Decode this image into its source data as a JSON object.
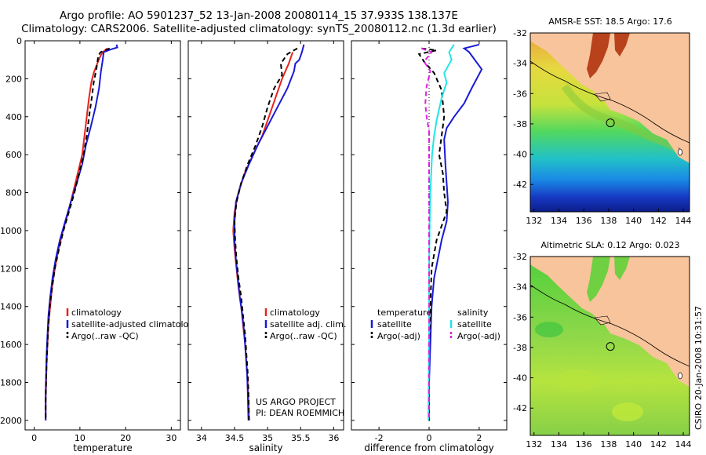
{
  "title": {
    "line1": "Argo profile: AO 5901237_52 13-Jan-2008 20080114_15 37.933S 138.137E",
    "line2": "Climatology: CARS2006. Satellite-adjusted climatology: synTS_20080112.nc (1.3d earlier)"
  },
  "credit": {
    "line1": "US ARGO PROJECT",
    "line2": "PI: DEAN ROEMMICH"
  },
  "side_stamp": "CSIRO 20-Jan-2008 10:31:57",
  "colors": {
    "red": "#e8231c",
    "blue": "#1a1ad6",
    "black": "#000000",
    "cyan": "#22e5e5",
    "magenta": "#e020e0",
    "land": "#f8c49b"
  },
  "chart_data": [
    {
      "type": "line",
      "id": "temperature",
      "xlabel": "temperature",
      "ylabel": "",
      "xlim": [
        -2,
        32
      ],
      "ylim": [
        2050,
        0
      ],
      "xticks": [
        0,
        10,
        20,
        30
      ],
      "yticks": [
        0,
        200,
        400,
        600,
        800,
        1000,
        1200,
        1400,
        1600,
        1800,
        2000
      ],
      "legend": [
        "climatology",
        "satellite-adjusted climatology",
        "Argo(..raw -QC)"
      ],
      "series": [
        {
          "name": "climatology",
          "color": "red",
          "dash": "",
          "points": [
            [
              16,
              40
            ],
            [
              15,
              60
            ],
            [
              14.5,
              80
            ],
            [
              13.8,
              120
            ],
            [
              13,
              170
            ],
            [
              12.5,
              220
            ],
            [
              12,
              300
            ],
            [
              11.5,
              400
            ],
            [
              11,
              500
            ],
            [
              10.5,
              600
            ],
            [
              9.5,
              700
            ],
            [
              8.5,
              800
            ],
            [
              7.5,
              900
            ],
            [
              6.3,
              1000
            ],
            [
              5.3,
              1100
            ],
            [
              4.5,
              1200
            ],
            [
              3.9,
              1300
            ],
            [
              3.5,
              1400
            ],
            [
              3.1,
              1500
            ],
            [
              2.9,
              1600
            ],
            [
              2.7,
              1700
            ],
            [
              2.6,
              1800
            ],
            [
              2.5,
              1900
            ],
            [
              2.5,
              2000
            ]
          ]
        },
        {
          "name": "satellite-adjusted climatology",
          "color": "blue",
          "dash": "",
          "points": [
            [
              18,
              20
            ],
            [
              18.2,
              35
            ],
            [
              16.8,
              45
            ],
            [
              15.2,
              60
            ],
            [
              15,
              100
            ],
            [
              14.6,
              160
            ],
            [
              14.2,
              250
            ],
            [
              13.4,
              350
            ],
            [
              12.4,
              450
            ],
            [
              11.3,
              550
            ],
            [
              10.5,
              650
            ],
            [
              9.3,
              750
            ],
            [
              8,
              850
            ],
            [
              6.8,
              950
            ],
            [
              5.6,
              1050
            ],
            [
              4.7,
              1150
            ],
            [
              4,
              1250
            ],
            [
              3.5,
              1350
            ],
            [
              3.1,
              1450
            ],
            [
              2.9,
              1550
            ],
            [
              2.7,
              1650
            ],
            [
              2.6,
              1750
            ],
            [
              2.5,
              1850
            ],
            [
              2.5,
              2000
            ]
          ]
        },
        {
          "name": "Argo(..raw -QC)",
          "color": "black",
          "dash": "6,4",
          "points": [
            [
              16.5,
              40
            ],
            [
              14.5,
              60
            ],
            [
              14,
              80
            ],
            [
              13.8,
              120
            ],
            [
              13.5,
              160
            ],
            [
              13,
              220
            ],
            [
              12.6,
              300
            ],
            [
              12,
              400
            ],
            [
              11.5,
              500
            ],
            [
              10.8,
              600
            ],
            [
              9.8,
              700
            ],
            [
              8.8,
              800
            ],
            [
              7.6,
              900
            ],
            [
              6.4,
              1000
            ],
            [
              5.4,
              1100
            ],
            [
              4.5,
              1200
            ],
            [
              3.9,
              1300
            ],
            [
              3.4,
              1400
            ],
            [
              3.1,
              1500
            ],
            [
              2.9,
              1600
            ],
            [
              2.7,
              1700
            ],
            [
              2.6,
              1800
            ],
            [
              2.5,
              1900
            ],
            [
              2.5,
              2000
            ]
          ]
        }
      ]
    },
    {
      "type": "line",
      "id": "salinity",
      "xlabel": "salinity",
      "ylabel": "",
      "xlim": [
        33.8,
        36.15
      ],
      "ylim": [
        2050,
        0
      ],
      "xticks": [
        34,
        34.5,
        35,
        35.5,
        36
      ],
      "yticks": [
        0,
        200,
        400,
        600,
        800,
        1000,
        1200,
        1400,
        1600,
        1800,
        2000
      ],
      "legend": [
        "climatology",
        "satellite adj. clim.",
        "Argo(..raw -QC)"
      ],
      "series": [
        {
          "name": "climatology",
          "color": "red",
          "dash": "",
          "points": [
            [
              35.38,
              60
            ],
            [
              35.32,
              120
            ],
            [
              35.22,
              200
            ],
            [
              35.12,
              300
            ],
            [
              35.02,
              400
            ],
            [
              34.92,
              500
            ],
            [
              34.78,
              600
            ],
            [
              34.65,
              700
            ],
            [
              34.56,
              800
            ],
            [
              34.5,
              900
            ],
            [
              34.48,
              1000
            ],
            [
              34.5,
              1100
            ],
            [
              34.53,
              1200
            ],
            [
              34.56,
              1300
            ],
            [
              34.6,
              1400
            ],
            [
              34.63,
              1500
            ],
            [
              34.66,
              1600
            ],
            [
              34.68,
              1700
            ],
            [
              34.7,
              1800
            ],
            [
              34.71,
              1900
            ],
            [
              34.72,
              2000
            ]
          ]
        },
        {
          "name": "satellite adj. clim.",
          "color": "blue",
          "dash": "",
          "points": [
            [
              35.55,
              20
            ],
            [
              35.52,
              60
            ],
            [
              35.48,
              100
            ],
            [
              35.42,
              120
            ],
            [
              35.4,
              160
            ],
            [
              35.3,
              250
            ],
            [
              35.15,
              350
            ],
            [
              35,
              450
            ],
            [
              34.85,
              550
            ],
            [
              34.72,
              650
            ],
            [
              34.6,
              750
            ],
            [
              34.52,
              850
            ],
            [
              34.5,
              950
            ],
            [
              34.5,
              1050
            ],
            [
              34.52,
              1150
            ],
            [
              34.55,
              1250
            ],
            [
              34.58,
              1350
            ],
            [
              34.62,
              1450
            ],
            [
              34.65,
              1550
            ],
            [
              34.67,
              1650
            ],
            [
              34.69,
              1750
            ],
            [
              34.7,
              1850
            ],
            [
              34.71,
              2000
            ]
          ]
        },
        {
          "name": "Argo(..raw -QC)",
          "color": "black",
          "dash": "6,4",
          "points": [
            [
              35.45,
              40
            ],
            [
              35.3,
              70
            ],
            [
              35.2,
              120
            ],
            [
              35.22,
              180
            ],
            [
              35.1,
              250
            ],
            [
              35,
              350
            ],
            [
              34.92,
              450
            ],
            [
              34.82,
              550
            ],
            [
              34.7,
              650
            ],
            [
              34.6,
              750
            ],
            [
              34.53,
              850
            ],
            [
              34.5,
              950
            ],
            [
              34.51,
              1050
            ],
            [
              34.53,
              1150
            ],
            [
              34.56,
              1250
            ],
            [
              34.6,
              1350
            ],
            [
              34.63,
              1450
            ],
            [
              34.66,
              1550
            ],
            [
              34.68,
              1650
            ],
            [
              34.7,
              1750
            ],
            [
              34.71,
              1850
            ],
            [
              34.72,
              2000
            ]
          ]
        }
      ]
    },
    {
      "type": "line",
      "id": "difference",
      "xlabel": "difference from climatology",
      "ylabel": "",
      "xlim": [
        -3.1,
        3.1
      ],
      "ylim": [
        2050,
        0
      ],
      "xticks": [
        -2,
        0,
        2
      ],
      "yticks": [
        0,
        200,
        400,
        600,
        800,
        1000,
        1200,
        1400,
        1600,
        1800,
        2000
      ],
      "legend_headers": [
        "temperature",
        "salinity"
      ],
      "legend": [
        "satellite",
        "Argo(-adj)",
        "satellite",
        "Argo(-adj)"
      ],
      "series": [
        {
          "name": "temperature satellite",
          "color": "blue",
          "dash": "",
          "points": [
            [
              2,
              20
            ],
            [
              1.4,
              40
            ],
            [
              1.6,
              60
            ],
            [
              2.1,
              150
            ],
            [
              1.7,
              250
            ],
            [
              1.4,
              330
            ],
            [
              1,
              400
            ],
            [
              0.7,
              460
            ],
            [
              0.6,
              520
            ],
            [
              0.65,
              650
            ],
            [
              0.7,
              750
            ],
            [
              0.75,
              850
            ],
            [
              0.7,
              950
            ],
            [
              0.5,
              1050
            ],
            [
              0.35,
              1150
            ],
            [
              0.2,
              1250
            ],
            [
              0.1,
              1400
            ],
            [
              0.05,
              1600
            ],
            [
              0,
              1800
            ],
            [
              0,
              2000
            ]
          ]
        },
        {
          "name": "temperature Argo(-adj)",
          "color": "black",
          "dash": "6,4",
          "points": [
            [
              -0.3,
              40
            ],
            [
              0.3,
              50
            ],
            [
              -0.4,
              70
            ],
            [
              -0.2,
              110
            ],
            [
              0.2,
              170
            ],
            [
              0.5,
              260
            ],
            [
              0.6,
              400
            ],
            [
              0.5,
              500
            ],
            [
              0.4,
              600
            ],
            [
              0.55,
              700
            ],
            [
              0.6,
              800
            ],
            [
              0.7,
              900
            ],
            [
              0.3,
              1050
            ],
            [
              0.1,
              1200
            ],
            [
              0.05,
              1400
            ],
            [
              0,
              1600
            ],
            [
              0,
              2000
            ]
          ]
        },
        {
          "name": "salinity satellite",
          "color": "cyan",
          "dash": "",
          "points": [
            [
              1,
              20
            ],
            [
              0.8,
              60
            ],
            [
              0.9,
              100
            ],
            [
              0.6,
              170
            ],
            [
              0.7,
              220
            ],
            [
              0.5,
              300
            ],
            [
              0.3,
              420
            ],
            [
              0.2,
              500
            ],
            [
              0.12,
              600
            ],
            [
              0.05,
              800
            ],
            [
              0.02,
              1000
            ],
            [
              0,
              1200
            ],
            [
              0,
              1500
            ],
            [
              -0.02,
              1800
            ],
            [
              -0.03,
              2000
            ]
          ]
        },
        {
          "name": "salinity Argo(-adj)",
          "color": "magenta",
          "dash": "6,4",
          "points": [
            [
              -0.3,
              40
            ],
            [
              0.1,
              60
            ],
            [
              -0.2,
              110
            ],
            [
              0.05,
              160
            ],
            [
              -0.1,
              240
            ],
            [
              -0.15,
              330
            ],
            [
              -0.1,
              400
            ],
            [
              0,
              480
            ],
            [
              0,
              600
            ],
            [
              0,
              800
            ],
            [
              0,
              1000
            ],
            [
              0,
              1200
            ],
            [
              0,
              1500
            ],
            [
              0,
              1800
            ],
            [
              0,
              2000
            ]
          ]
        }
      ]
    },
    {
      "type": "heatmap",
      "id": "sst_map",
      "title": "AMSR-E SST: 18.5 Argo: 17.6",
      "xlim": [
        131.7,
        144.5
      ],
      "ylim": [
        -43.8,
        -32
      ],
      "xticks": [
        132,
        134,
        136,
        138,
        140,
        142,
        144
      ],
      "yticks": [
        -32,
        -34,
        -36,
        -38,
        -40,
        -42
      ],
      "argo_location": [
        138.137,
        -37.933
      ]
    },
    {
      "type": "heatmap",
      "id": "sla_map",
      "title": "Altimetric SLA: 0.12 Argo: 0.023",
      "xlim": [
        131.7,
        144.5
      ],
      "ylim": [
        -43.8,
        -32
      ],
      "xticks": [
        132,
        134,
        136,
        138,
        140,
        142,
        144
      ],
      "yticks": [
        -32,
        -34,
        -36,
        -38,
        -40,
        -42
      ],
      "argo_location": [
        138.137,
        -37.933
      ]
    }
  ]
}
